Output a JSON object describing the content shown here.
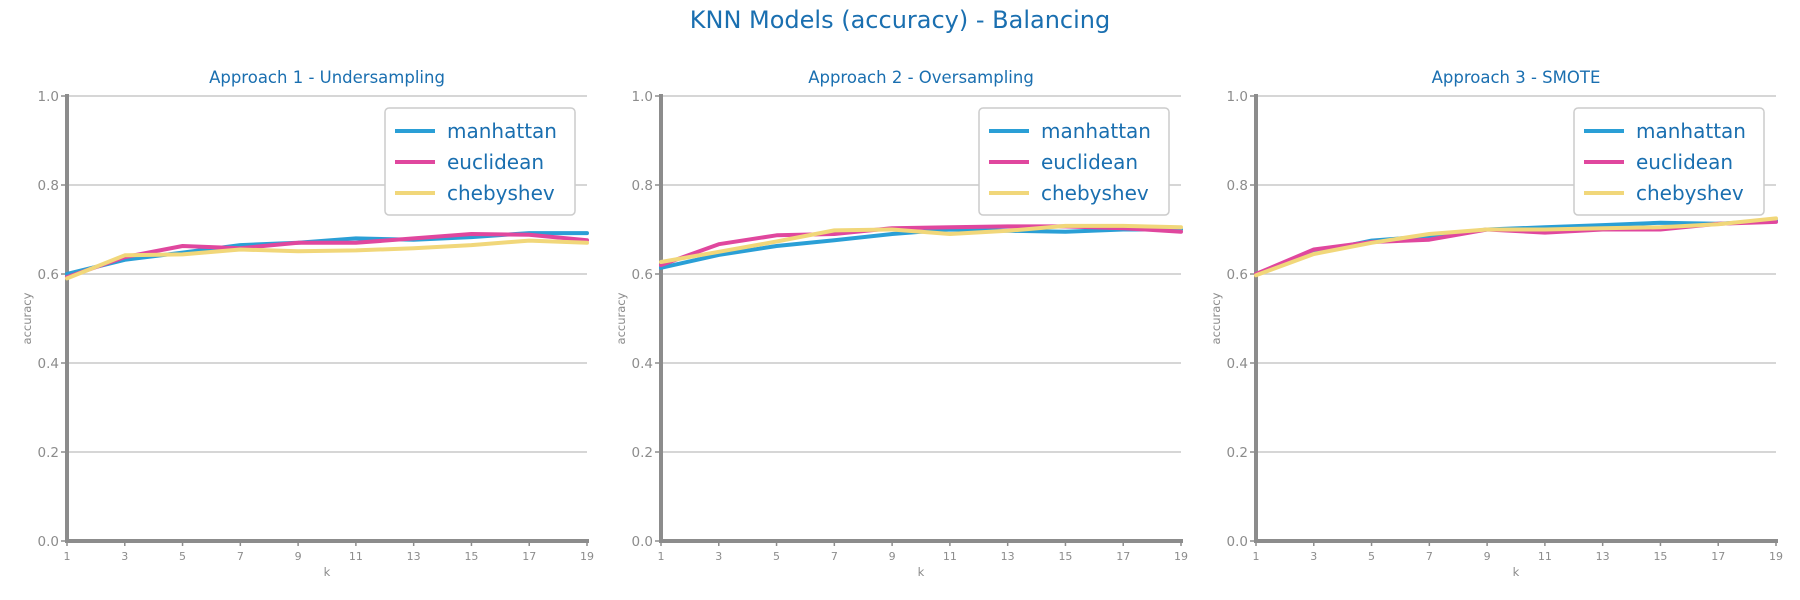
{
  "title": "KNN Models (accuracy) - Balancing",
  "colors": {
    "manhattan": "#2a9fd6",
    "euclidean": "#e0479e",
    "chebyshev": "#f1d77a",
    "text": "#1a6fb0",
    "axis": "#8c8c8c",
    "grid": "#c8c8c8"
  },
  "chart_data": [
    {
      "type": "line",
      "title": "Approach 1 - Undersampling",
      "xlabel": "k",
      "ylabel": "accuracy",
      "x": [
        1,
        3,
        5,
        7,
        9,
        11,
        13,
        15,
        17,
        19
      ],
      "xticks": [
        "1",
        "3",
        "5",
        "7",
        "9",
        "11",
        "13",
        "15",
        "17",
        "19"
      ],
      "ylim": [
        0.0,
        1.0
      ],
      "yticks": [
        "0.0",
        "0.2",
        "0.4",
        "0.6",
        "0.8",
        "1.0"
      ],
      "grid": "horizontal",
      "legend": "top-right",
      "series": [
        {
          "name": "manhattan",
          "values": [
            0.6,
            0.632,
            0.648,
            0.665,
            0.67,
            0.68,
            0.677,
            0.683,
            0.692,
            0.692
          ]
        },
        {
          "name": "euclidean",
          "values": [
            0.593,
            0.638,
            0.663,
            0.658,
            0.67,
            0.67,
            0.68,
            0.69,
            0.688,
            0.676
          ]
        },
        {
          "name": "chebyshev",
          "values": [
            0.59,
            0.642,
            0.644,
            0.655,
            0.651,
            0.653,
            0.658,
            0.665,
            0.675,
            0.67
          ]
        }
      ]
    },
    {
      "type": "line",
      "title": "Approach 2 - Oversampling",
      "xlabel": "k",
      "ylabel": "accuracy",
      "x": [
        1,
        3,
        5,
        7,
        9,
        11,
        13,
        15,
        17,
        19
      ],
      "xticks": [
        "1",
        "3",
        "5",
        "7",
        "9",
        "11",
        "13",
        "15",
        "17",
        "19"
      ],
      "ylim": [
        0.0,
        1.0
      ],
      "yticks": [
        "0.0",
        "0.2",
        "0.4",
        "0.6",
        "0.8",
        "1.0"
      ],
      "grid": "horizontal",
      "legend": "top-right",
      "series": [
        {
          "name": "manhattan",
          "values": [
            0.614,
            0.643,
            0.663,
            0.676,
            0.69,
            0.7,
            0.697,
            0.695,
            0.7,
            0.7
          ]
        },
        {
          "name": "euclidean",
          "values": [
            0.62,
            0.667,
            0.687,
            0.69,
            0.703,
            0.705,
            0.707,
            0.707,
            0.703,
            0.695
          ]
        },
        {
          "name": "chebyshev",
          "values": [
            0.627,
            0.65,
            0.673,
            0.698,
            0.7,
            0.69,
            0.697,
            0.708,
            0.708,
            0.705
          ]
        }
      ]
    },
    {
      "type": "line",
      "title": "Approach 3 - SMOTE",
      "xlabel": "k",
      "ylabel": "accuracy",
      "x": [
        1,
        3,
        5,
        7,
        9,
        11,
        13,
        15,
        17,
        19
      ],
      "xticks": [
        "1",
        "3",
        "5",
        "7",
        "9",
        "11",
        "13",
        "15",
        "17",
        "19"
      ],
      "ylim": [
        0.0,
        1.0
      ],
      "yticks": [
        "0.0",
        "0.2",
        "0.4",
        "0.6",
        "0.8",
        "1.0"
      ],
      "grid": "horizontal",
      "legend": "top-right",
      "series": [
        {
          "name": "manhattan",
          "values": [
            0.6,
            0.648,
            0.675,
            0.685,
            0.7,
            0.705,
            0.71,
            0.715,
            0.713,
            0.72
          ]
        },
        {
          "name": "euclidean",
          "values": [
            0.6,
            0.655,
            0.672,
            0.677,
            0.7,
            0.693,
            0.7,
            0.7,
            0.713,
            0.717
          ]
        },
        {
          "name": "chebyshev",
          "values": [
            0.597,
            0.645,
            0.67,
            0.69,
            0.7,
            0.7,
            0.703,
            0.705,
            0.712,
            0.725
          ]
        }
      ]
    }
  ]
}
